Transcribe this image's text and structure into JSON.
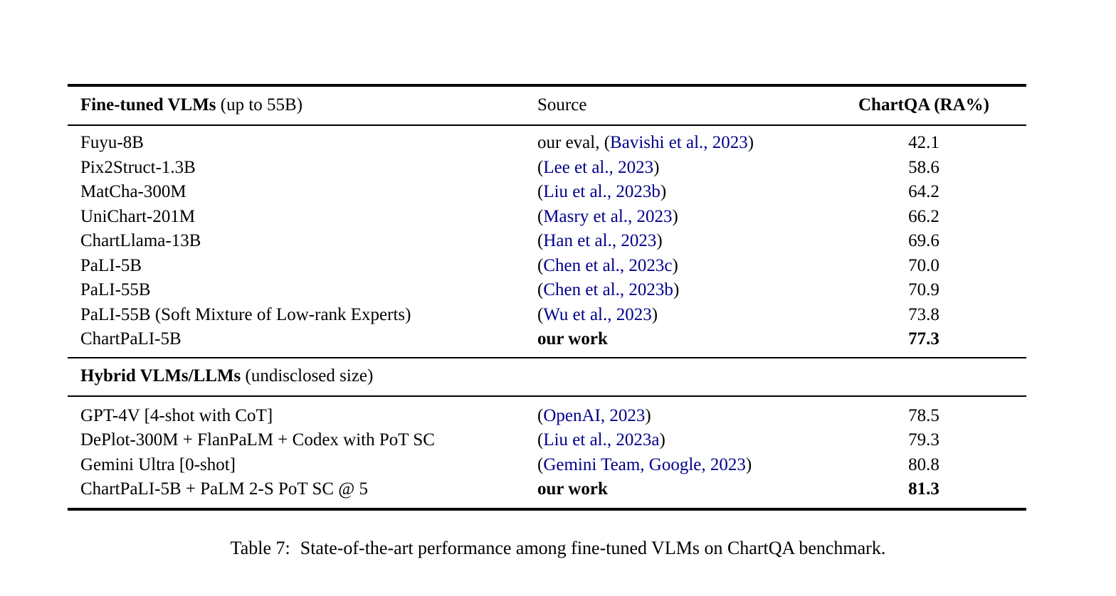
{
  "colors": {
    "text": "#000000",
    "citation_link": "#00008B",
    "rule": "#000000",
    "background": "#ffffff"
  },
  "table": {
    "header": {
      "col1_bold": "Fine-tuned VLMs",
      "col1_regular": " (up to 55B)",
      "col2": "Source",
      "col3": "ChartQA (RA%)"
    },
    "sections": [
      {
        "rows": [
          {
            "model": "Fuyu-8B",
            "source_prefix": "our eval, ",
            "cite": "Bavishi et al., 2023",
            "score": "42.1",
            "bold": false
          },
          {
            "model": "Pix2Struct-1.3B",
            "source_prefix": "",
            "cite": "Lee et al., 2023",
            "score": "58.6",
            "bold": false
          },
          {
            "model": "MatCha-300M",
            "source_prefix": "",
            "cite": "Liu et al., 2023b",
            "score": "64.2",
            "bold": false
          },
          {
            "model": "UniChart-201M",
            "source_prefix": "",
            "cite": "Masry et al., 2023",
            "score": "66.2",
            "bold": false
          },
          {
            "model": "ChartLlama-13B",
            "source_prefix": "",
            "cite": "Han et al., 2023",
            "score": "69.6",
            "bold": false
          },
          {
            "model": "PaLI-5B",
            "source_prefix": "",
            "cite": "Chen et al., 2023c",
            "score": "70.0",
            "bold": false
          },
          {
            "model": "PaLI-55B",
            "source_prefix": "",
            "cite": "Chen et al., 2023b",
            "score": "70.9",
            "bold": false
          },
          {
            "model": "PaLI-55B (Soft Mixture of Low-rank Experts)",
            "source_prefix": "",
            "cite": "Wu et al., 2023",
            "score": "73.8",
            "bold": false
          },
          {
            "model": "ChartPaLI-5B",
            "source_text": "our work",
            "score": "77.3",
            "bold": true
          }
        ]
      },
      {
        "title_bold": "Hybrid VLMs/LLMs",
        "title_regular": " (undisclosed size)",
        "rows": [
          {
            "model": "GPT-4V [4-shot with CoT]",
            "source_prefix": "",
            "cite": "OpenAI, 2023",
            "score": "78.5",
            "bold": false
          },
          {
            "model": "DePlot-300M + FlanPaLM + Codex with PoT SC",
            "source_prefix": "",
            "cite": "Liu et al., 2023a",
            "score": "79.3",
            "bold": false
          },
          {
            "model": "Gemini Ultra [0-shot]",
            "source_prefix": "",
            "cite": "Gemini Team, Google, 2023",
            "score": "80.8",
            "bold": false
          },
          {
            "model": "ChartPaLI-5B + PaLM 2-S PoT SC @ 5",
            "source_text": "our work",
            "score": "81.3",
            "bold": true
          }
        ]
      }
    ]
  },
  "caption": {
    "label": "Table 7:",
    "text": "State-of-the-art performance among fine-tuned VLMs on ChartQA benchmark."
  }
}
